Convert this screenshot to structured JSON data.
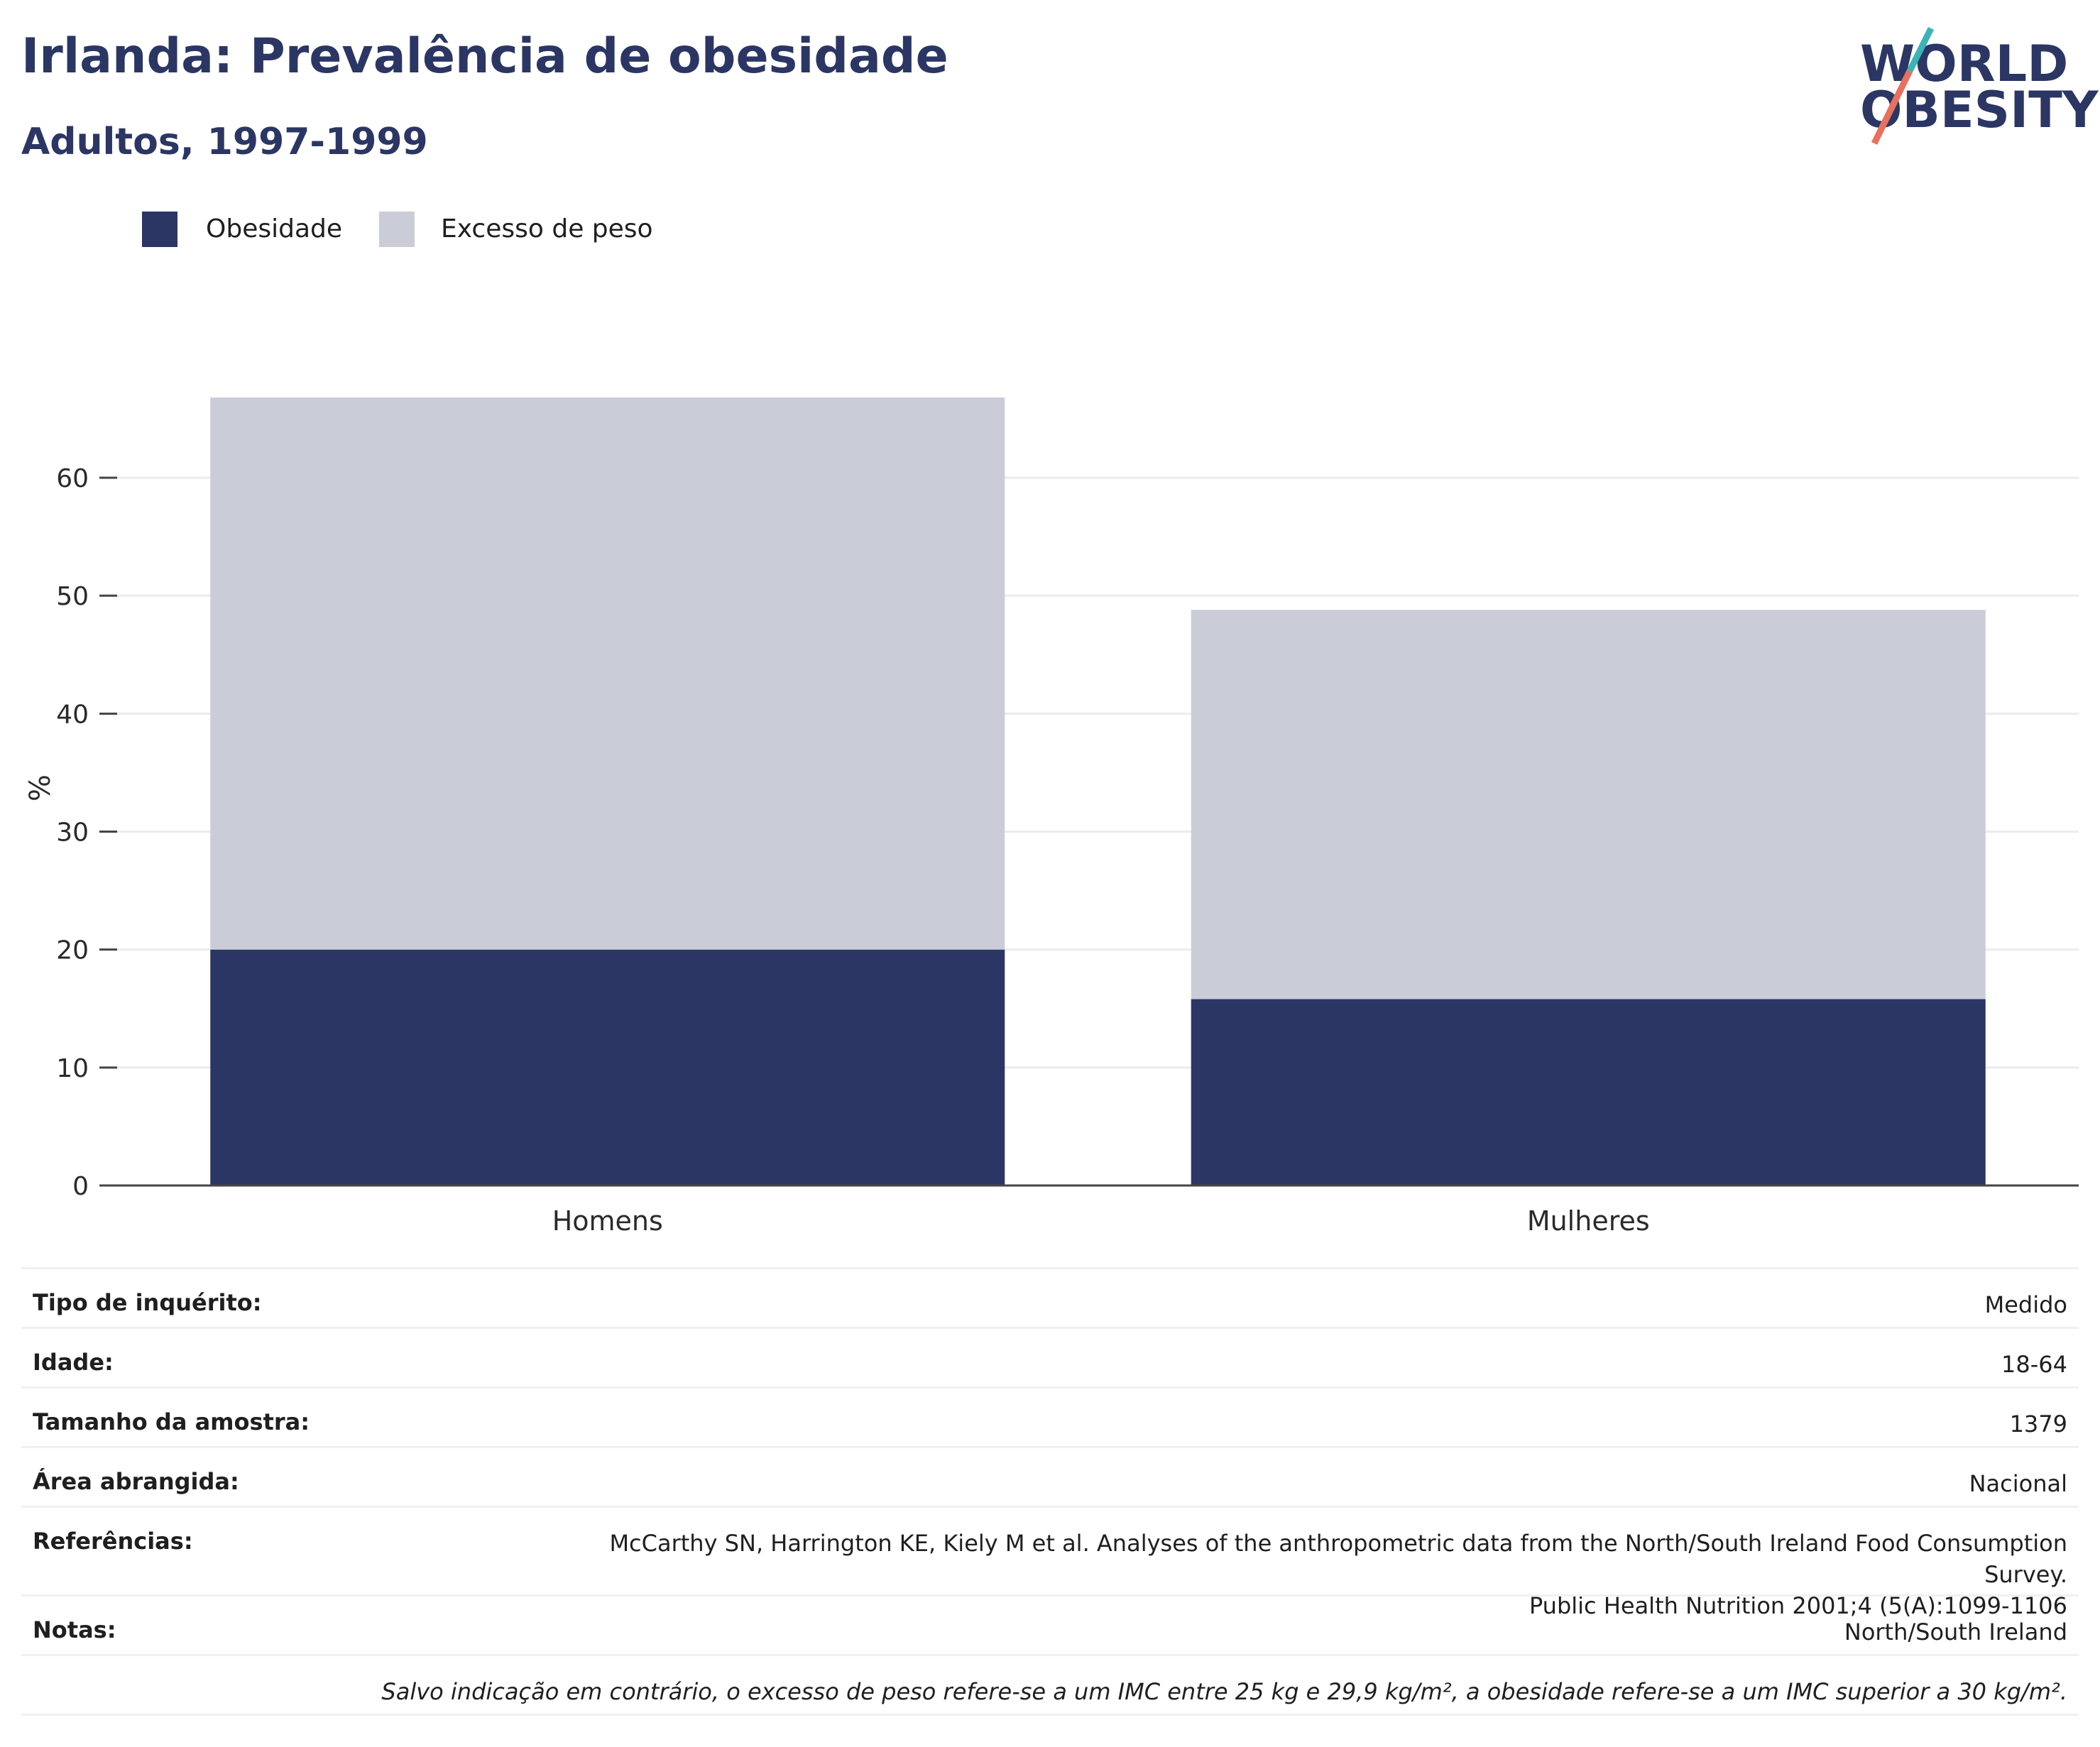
{
  "title": "Irlanda: Prevalência de obesidade",
  "subtitle": "Adultos, 1997-1999",
  "logo": {
    "line1": "WORLD",
    "line2": "OBESITY"
  },
  "colors": {
    "obesity": "#2b3664",
    "overweight": "#cacdd8",
    "grid": "#ebebf0",
    "axis": "#444444",
    "accent_teal": "#3bb4b7",
    "accent_coral": "#e8705f"
  },
  "chart_data": {
    "type": "bar",
    "stacked": true,
    "categories": [
      "Homens",
      "Mulheres"
    ],
    "series": [
      {
        "name": "Obesidade",
        "values": [
          20.0,
          15.8
        ]
      },
      {
        "name": "Excesso de peso",
        "values": [
          46.8,
          33.0
        ]
      }
    ],
    "ylabel": "%",
    "ylim": [
      0,
      66.8
    ],
    "yticks": [
      0,
      10,
      20,
      30,
      40,
      50,
      60
    ],
    "grid": true,
    "legend": "top-left"
  },
  "info": {
    "rows": [
      {
        "key": "Tipo de inquérito:",
        "value": "Medido"
      },
      {
        "key": "Idade:",
        "value": "18-64"
      },
      {
        "key": "Tamanho da amostra:",
        "value": "1379"
      },
      {
        "key": "Área abrangida:",
        "value": "Nacional"
      },
      {
        "key": "Referências:",
        "value": "McCarthy SN, Harrington KE, Kiely M et al. Analyses of the anthropometric data from the North/South Ireland Food Consumption Survey.",
        "value2": "Public Health Nutrition 2001;4 (5(A):1099-1106"
      },
      {
        "key": "Notas:",
        "value": "North/South Ireland"
      }
    ],
    "footnote": "Salvo indicação em contrário, o excesso de peso refere-se a um IMC entre 25 kg e 29,9 kg/m², a obesidade refere-se a um IMC superior a 30 kg/m²."
  }
}
